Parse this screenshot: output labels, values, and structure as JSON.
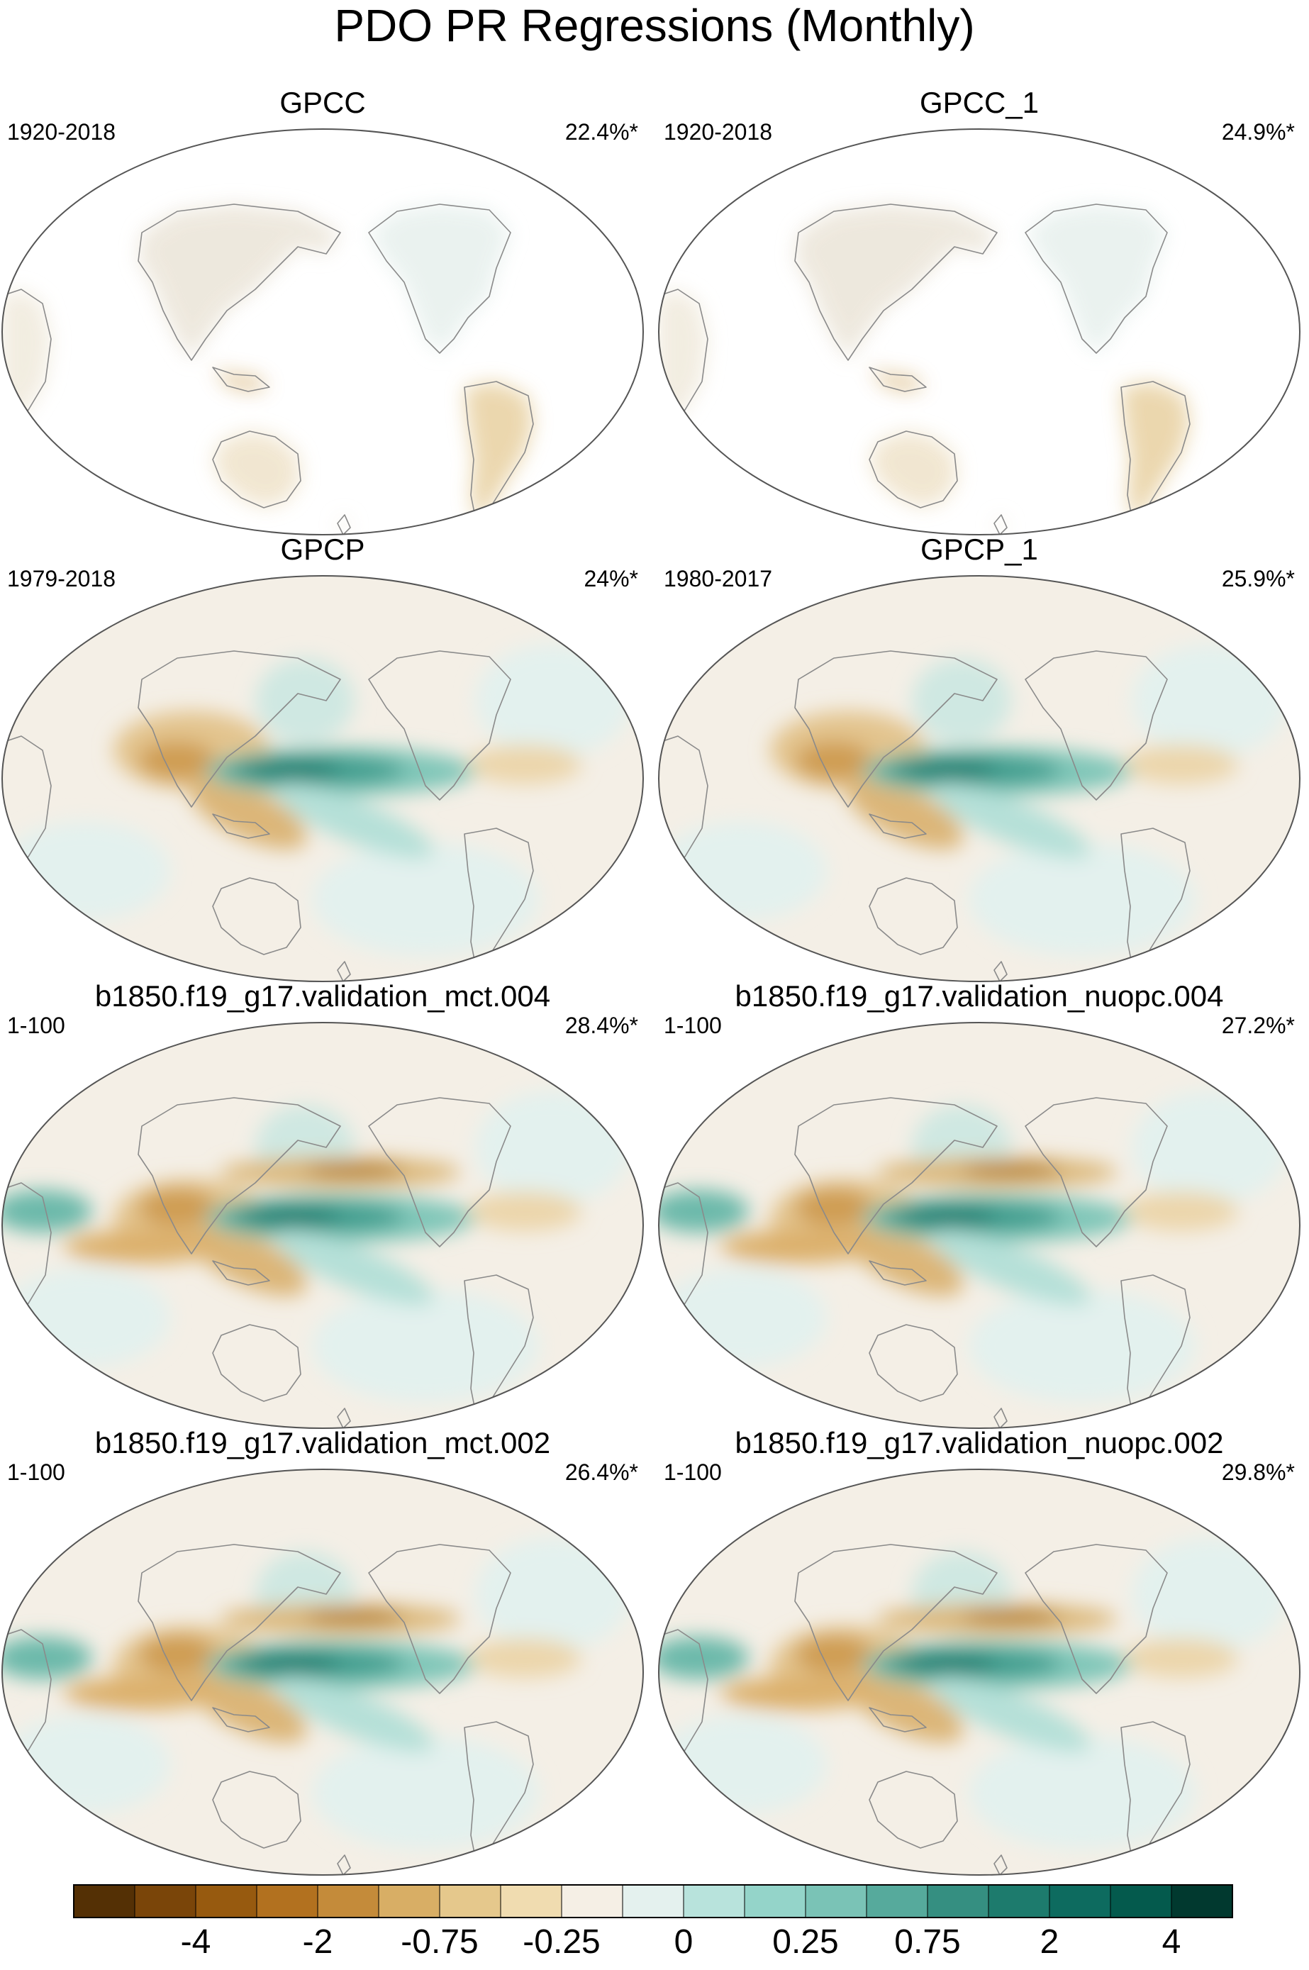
{
  "title": "PDO PR Regressions (Monthly)",
  "panels": [
    {
      "title": "GPCC",
      "period": "1920-2018",
      "variance": "22.4%*",
      "data_coverage": "land"
    },
    {
      "title": "GPCC_1",
      "period": "1920-2018",
      "variance": "24.9%*",
      "data_coverage": "land"
    },
    {
      "title": "GPCP",
      "period": "1979-2018",
      "variance": "24%*",
      "data_coverage": "global"
    },
    {
      "title": "GPCP_1",
      "period": "1980-2017",
      "variance": "25.9%*",
      "data_coverage": "global"
    },
    {
      "title": "b1850.f19_g17.validation_mct.004",
      "period": "1-100",
      "variance": "28.4%*",
      "data_coverage": "global"
    },
    {
      "title": "b1850.f19_g17.validation_nuopc.004",
      "period": "1-100",
      "variance": "27.2%*",
      "data_coverage": "global"
    },
    {
      "title": "b1850.f19_g17.validation_mct.002",
      "period": "1-100",
      "variance": "26.4%*",
      "data_coverage": "global"
    },
    {
      "title": "b1850.f19_g17.validation_nuopc.002",
      "period": "1-100",
      "variance": "29.8%*",
      "data_coverage": "global"
    }
  ],
  "colorbar": {
    "colors": [
      "#543005",
      "#7a4509",
      "#975a0f",
      "#b2711f",
      "#c48b3a",
      "#d8ae65",
      "#e5c88c",
      "#f0dcb0",
      "#f5efe5",
      "#e4f1ee",
      "#b8e3dc",
      "#94d4c9",
      "#7ac3b6",
      "#56aa9c",
      "#358f81",
      "#1d7b6d",
      "#0d6b5f",
      "#045a4d",
      "#01392f"
    ],
    "labels": [
      "-4",
      "-2",
      "-0.75",
      "-0.25",
      "0",
      "0.25",
      "0.75",
      "2",
      "4"
    ],
    "label_boundaries": [
      2,
      4,
      6,
      8,
      10,
      12,
      14,
      16,
      18
    ]
  },
  "chart_data": {
    "type": "heatmap",
    "title": "PDO PR Regressions (Monthly)",
    "projection": "Robinson, Pacific-centered",
    "variable": "Precipitation regression on PDO index",
    "levels": [
      -4,
      -2,
      -0.75,
      -0.25,
      0,
      0.25,
      0.75,
      2,
      4
    ],
    "panels": [
      "GPCC",
      "GPCC_1",
      "GPCP",
      "GPCP_1",
      "b1850.f19_g17.validation_mct.004",
      "b1850.f19_g17.validation_nuopc.004",
      "b1850.f19_g17.validation_mct.002",
      "b1850.f19_g17.validation_nuopc.002"
    ],
    "variance_explained": [
      "22.4%*",
      "24.9%*",
      "24%*",
      "25.9%*",
      "28.4%*",
      "27.2%*",
      "26.4%*",
      "29.8%*"
    ]
  }
}
